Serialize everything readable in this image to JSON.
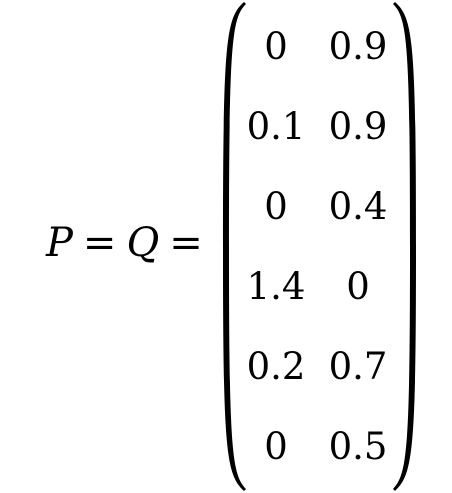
{
  "equation": {
    "lhs_var_1": "P",
    "eq_1": "=",
    "lhs_var_2": "Q",
    "eq_2": "="
  },
  "matrix": {
    "rows": [
      [
        "0",
        "0.9"
      ],
      [
        "0.1",
        "0.9"
      ],
      [
        "0",
        "0.4"
      ],
      [
        "1.4",
        "0"
      ],
      [
        "0.2",
        "0.7"
      ],
      [
        "0",
        "0.5"
      ]
    ]
  }
}
